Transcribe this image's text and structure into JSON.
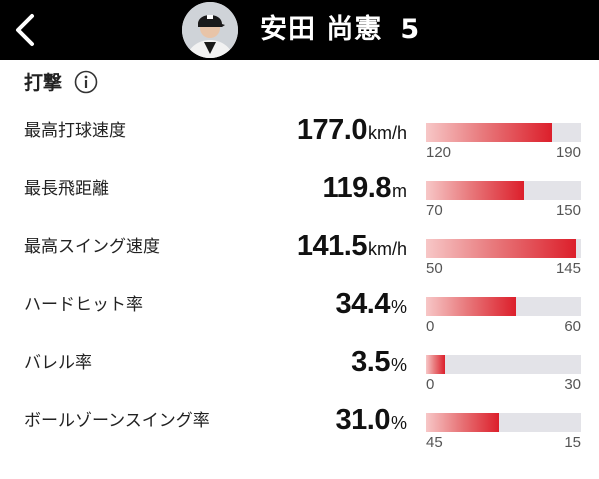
{
  "header": {
    "player_name": "安田 尚憲",
    "player_number": "5",
    "back_icon": "chevron-left-icon",
    "avatar_icon": "player-avatar"
  },
  "section": {
    "title": "打撃",
    "info_icon": "info-icon"
  },
  "colors": {
    "header_bg": "#000000",
    "bar_track": "#e3e3e8",
    "bar_fill_start": "#f7c7c7",
    "bar_fill_end": "#dc1f2b"
  },
  "metrics": [
    {
      "label": "最高打球速度",
      "value": "177.0",
      "unit": "km/h",
      "scale_min": "120",
      "scale_max": "190",
      "fill_fraction": 0.81
    },
    {
      "label": "最長飛距離",
      "value": "119.8",
      "unit": "m",
      "scale_min": "70",
      "scale_max": "150",
      "fill_fraction": 0.63
    },
    {
      "label": "最高スイング速度",
      "value": "141.5",
      "unit": "km/h",
      "scale_min": "50",
      "scale_max": "145",
      "fill_fraction": 0.97
    },
    {
      "label": "ハードヒット率",
      "value": "34.4",
      "unit": "%",
      "scale_min": "0",
      "scale_max": "60",
      "fill_fraction": 0.58
    },
    {
      "label": "バレル率",
      "value": "3.5",
      "unit": "%",
      "scale_min": "0",
      "scale_max": "30",
      "fill_fraction": 0.12
    },
    {
      "label": "ボールゾーンスイング率",
      "value": "31.0",
      "unit": "%",
      "scale_min": "45",
      "scale_max": "15",
      "fill_fraction": 0.47
    }
  ]
}
